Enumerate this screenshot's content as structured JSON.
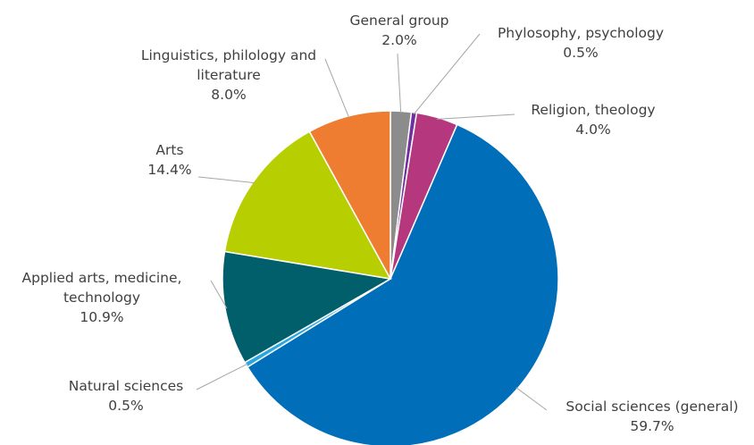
{
  "chart_data": {
    "type": "pie",
    "categories": [
      "General group",
      "Phylosophy, psychology",
      "Religion, theology",
      "Social sciences (general)",
      "Natural sciences",
      "Applied arts, medicine, technology",
      "Arts",
      "Linguistics, philology and literature"
    ],
    "values": [
      2.0,
      0.5,
      4.0,
      59.7,
      0.5,
      10.9,
      14.4,
      8.0
    ],
    "value_labels": [
      "2.0%",
      "0.5%",
      "4.0%",
      "59.7%",
      "0.5%",
      "10.9%",
      "14.4%",
      "8.0%"
    ],
    "colors": [
      "#8c8c8c",
      "#7030a0",
      "#b5387e",
      "#006eb8",
      "#29a8e0",
      "#005f6b",
      "#b7cf00",
      "#ef7d31"
    ]
  }
}
